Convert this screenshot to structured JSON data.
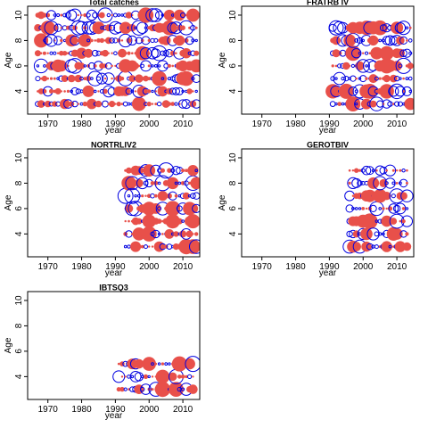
{
  "chart_data": [
    {
      "type": "scatter",
      "title": "Total catches",
      "xlabel": "year",
      "ylabel": "Age",
      "xlim": [
        1964,
        2015
      ],
      "ylim": [
        2.2,
        10.7
      ],
      "xticks": [
        1970,
        1980,
        1990,
        2000,
        2010
      ],
      "yticks": [
        4,
        6,
        8,
        10
      ],
      "years": [
        1967,
        2014
      ],
      "ages": [
        3,
        10
      ]
    },
    {
      "type": "scatter",
      "title": "FRATRB IV",
      "xlabel": "year",
      "ylabel": "Age",
      "xlim": [
        1964,
        2015
      ],
      "ylim": [
        2.2,
        10.7
      ],
      "xticks": [
        1970,
        1980,
        1990,
        2000,
        2010
      ],
      "yticks": [
        4,
        6,
        8,
        10
      ],
      "years": [
        1991,
        2014
      ],
      "ages": [
        3,
        9
      ]
    },
    {
      "type": "scatter",
      "title": "NORTRLIV2",
      "xlabel": "year",
      "ylabel": "Age",
      "xlim": [
        1964,
        2015
      ],
      "ylim": [
        2.2,
        10.7
      ],
      "xticks": [
        1970,
        1980,
        1990,
        2000,
        2010
      ],
      "yticks": [
        4,
        6,
        8,
        10
      ],
      "years": [
        1993,
        2014
      ],
      "ages": [
        3,
        9
      ]
    },
    {
      "type": "scatter",
      "title": "GEROTBIV",
      "xlabel": "year",
      "ylabel": "Age",
      "xlim": [
        1964,
        2015
      ],
      "ylim": [
        2.2,
        10.7
      ],
      "xticks": [
        1970,
        1980,
        1990,
        2000,
        2010
      ],
      "yticks": [
        4,
        6,
        8,
        10
      ],
      "years": [
        1996,
        2013
      ],
      "ages": [
        3,
        9
      ]
    },
    {
      "type": "scatter",
      "title": "IBTSQ3",
      "xlabel": "year",
      "ylabel": "Age",
      "xlim": [
        1964,
        2015
      ],
      "ylim": [
        2.2,
        10.7
      ],
      "xticks": [
        1970,
        1980,
        1990,
        2000,
        2010
      ],
      "yticks": [
        4,
        6,
        8,
        10
      ],
      "years": [
        1991,
        2013
      ],
      "ages": [
        3,
        5
      ]
    }
  ],
  "colors": {
    "positive": "#e8504a",
    "negative": "#0000e0"
  }
}
